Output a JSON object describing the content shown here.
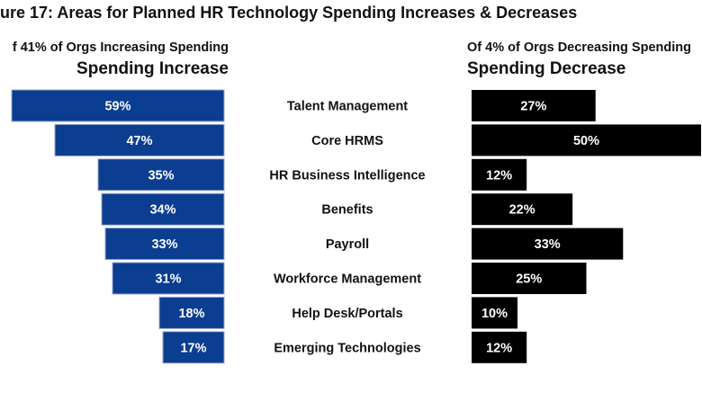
{
  "chart_data": {
    "type": "bar",
    "title": "ure 17: Areas for Planned HR Technology Spending Increases & Decreases",
    "categories": [
      "Talent Management",
      "Core HRMS",
      "HR Business Intelligence",
      "Benefits",
      "Payroll",
      "Workforce Management",
      "Help Desk/Portals",
      "Emerging Technologies"
    ],
    "series": [
      {
        "name": "Spending Increase",
        "subtitle": "f 41% of Orgs Increasing Spending",
        "color": "#0b3d91",
        "values": [
          59,
          47,
          35,
          34,
          33,
          31,
          18,
          17
        ],
        "labels": [
          "59%",
          "47%",
          "35%",
          "34%",
          "33%",
          "31%",
          "18%",
          "17%"
        ]
      },
      {
        "name": "Spending Decrease",
        "subtitle": "Of 4% of Orgs Decreasing Spending",
        "color": "#000000",
        "values": [
          27,
          50,
          12,
          22,
          33,
          25,
          10,
          12
        ],
        "labels": [
          "27%",
          "50%",
          "12%",
          "22%",
          "33%",
          "25%",
          "10%",
          "12%"
        ]
      }
    ],
    "grid": false,
    "legend": "none"
  }
}
